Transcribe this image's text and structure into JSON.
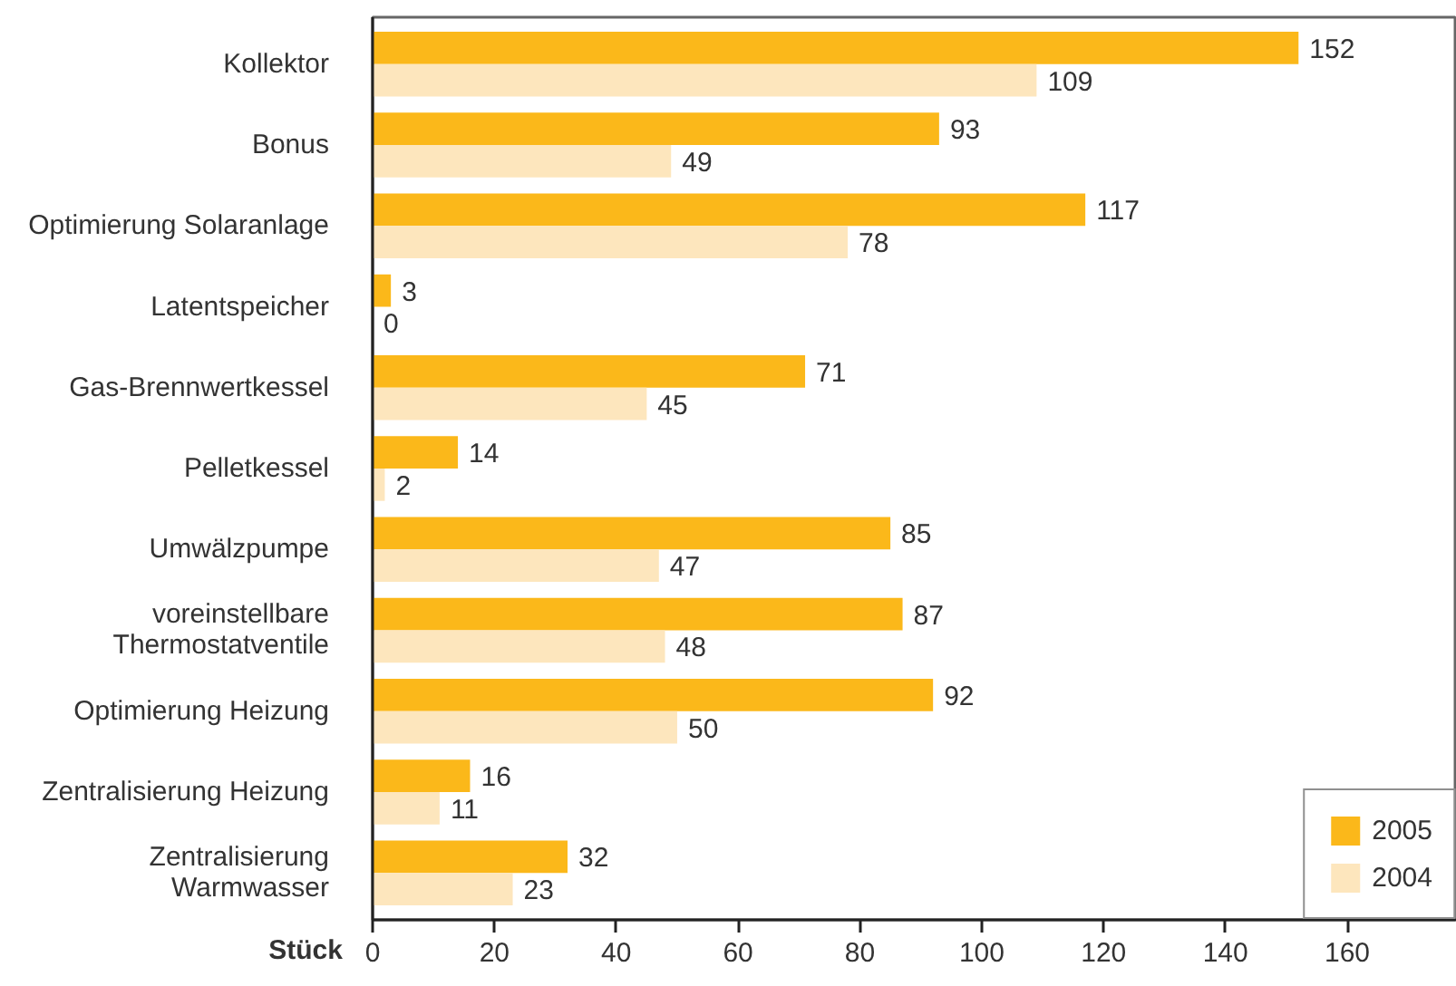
{
  "chart_data": {
    "type": "bar",
    "orientation": "horizontal",
    "categories": [
      "Kollektor",
      "Bonus",
      "Optimierung Solaranlage",
      "Latentspeicher",
      "Gas-Brennwertkessel",
      "Pelletkessel",
      "Umwälzpumpe",
      "voreinstellbare\nThermostatventile",
      "Optimierung Heizung",
      "Zentralisierung Heizung",
      "Zentralisierung\nWarmwasser"
    ],
    "series": [
      {
        "name": "2005",
        "color": "#fbb81a",
        "values": [
          152,
          93,
          117,
          3,
          71,
          14,
          85,
          87,
          92,
          16,
          32
        ]
      },
      {
        "name": "2004",
        "color": "#fde6bd",
        "values": [
          109,
          49,
          78,
          0,
          45,
          2,
          47,
          48,
          50,
          11,
          23
        ]
      }
    ],
    "xlabel": "Stück",
    "xlim": [
      0,
      178
    ],
    "xticks": [
      0,
      20,
      40,
      60,
      80,
      100,
      120,
      140,
      160
    ],
    "data_labels": true,
    "legend": "bottom right",
    "grid": false
  }
}
